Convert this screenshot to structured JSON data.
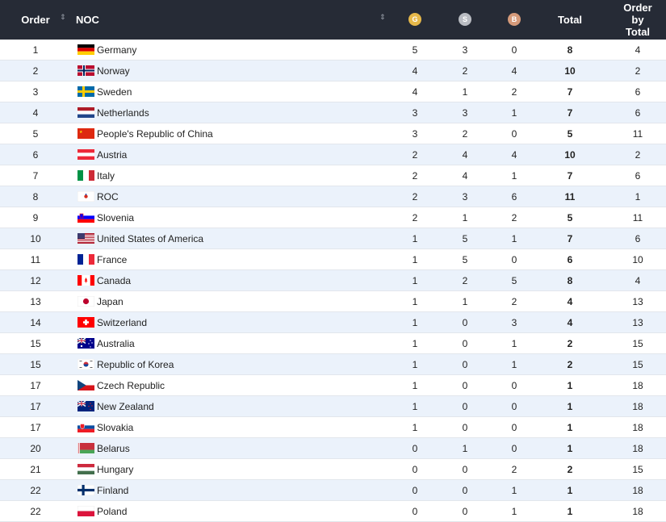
{
  "header": {
    "order": "Order",
    "noc": "NOC",
    "gold": "G",
    "silver": "S",
    "bronze": "B",
    "total": "Total",
    "order_by_total": [
      "Order",
      "by",
      "Total"
    ],
    "sort_icon": "⇕"
  },
  "rows": [
    {
      "order": "1",
      "noc": "Germany",
      "flag": "de",
      "g": "5",
      "s": "3",
      "b": "0",
      "total": "8",
      "obt": "4"
    },
    {
      "order": "2",
      "noc": "Norway",
      "flag": "no",
      "g": "4",
      "s": "2",
      "b": "4",
      "total": "10",
      "obt": "2"
    },
    {
      "order": "3",
      "noc": "Sweden",
      "flag": "se",
      "g": "4",
      "s": "1",
      "b": "2",
      "total": "7",
      "obt": "6"
    },
    {
      "order": "4",
      "noc": "Netherlands",
      "flag": "nl",
      "g": "3",
      "s": "3",
      "b": "1",
      "total": "7",
      "obt": "6"
    },
    {
      "order": "5",
      "noc": "People's Republic of China",
      "flag": "cn",
      "g": "3",
      "s": "2",
      "b": "0",
      "total": "5",
      "obt": "11"
    },
    {
      "order": "6",
      "noc": "Austria",
      "flag": "at",
      "g": "2",
      "s": "4",
      "b": "4",
      "total": "10",
      "obt": "2"
    },
    {
      "order": "7",
      "noc": "Italy",
      "flag": "it",
      "g": "2",
      "s": "4",
      "b": "1",
      "total": "7",
      "obt": "6"
    },
    {
      "order": "8",
      "noc": "ROC",
      "flag": "roc",
      "g": "2",
      "s": "3",
      "b": "6",
      "total": "11",
      "obt": "1"
    },
    {
      "order": "9",
      "noc": "Slovenia",
      "flag": "si",
      "g": "2",
      "s": "1",
      "b": "2",
      "total": "5",
      "obt": "11"
    },
    {
      "order": "10",
      "noc": "United States of America",
      "flag": "us",
      "g": "1",
      "s": "5",
      "b": "1",
      "total": "7",
      "obt": "6"
    },
    {
      "order": "11",
      "noc": "France",
      "flag": "fr",
      "g": "1",
      "s": "5",
      "b": "0",
      "total": "6",
      "obt": "10"
    },
    {
      "order": "12",
      "noc": "Canada",
      "flag": "ca",
      "g": "1",
      "s": "2",
      "b": "5",
      "total": "8",
      "obt": "4"
    },
    {
      "order": "13",
      "noc": "Japan",
      "flag": "jp",
      "g": "1",
      "s": "1",
      "b": "2",
      "total": "4",
      "obt": "13"
    },
    {
      "order": "14",
      "noc": "Switzerland",
      "flag": "ch",
      "g": "1",
      "s": "0",
      "b": "3",
      "total": "4",
      "obt": "13"
    },
    {
      "order": "15",
      "noc": "Australia",
      "flag": "au",
      "g": "1",
      "s": "0",
      "b": "1",
      "total": "2",
      "obt": "15"
    },
    {
      "order": "15",
      "noc": "Republic of Korea",
      "flag": "kr",
      "g": "1",
      "s": "0",
      "b": "1",
      "total": "2",
      "obt": "15"
    },
    {
      "order": "17",
      "noc": "Czech Republic",
      "flag": "cz",
      "g": "1",
      "s": "0",
      "b": "0",
      "total": "1",
      "obt": "18"
    },
    {
      "order": "17",
      "noc": "New Zealand",
      "flag": "nz",
      "g": "1",
      "s": "0",
      "b": "0",
      "total": "1",
      "obt": "18"
    },
    {
      "order": "17",
      "noc": "Slovakia",
      "flag": "sk",
      "g": "1",
      "s": "0",
      "b": "0",
      "total": "1",
      "obt": "18"
    },
    {
      "order": "20",
      "noc": "Belarus",
      "flag": "by",
      "g": "0",
      "s": "1",
      "b": "0",
      "total": "1",
      "obt": "18"
    },
    {
      "order": "21",
      "noc": "Hungary",
      "flag": "hu",
      "g": "0",
      "s": "0",
      "b": "2",
      "total": "2",
      "obt": "15"
    },
    {
      "order": "22",
      "noc": "Finland",
      "flag": "fi",
      "g": "0",
      "s": "0",
      "b": "1",
      "total": "1",
      "obt": "18"
    },
    {
      "order": "22",
      "noc": "Poland",
      "flag": "pl",
      "g": "0",
      "s": "0",
      "b": "1",
      "total": "1",
      "obt": "18"
    }
  ],
  "colors": {
    "header_bg": "#262b36",
    "row_alt_bg": "#ebf2fb",
    "gold": "#e6b84a",
    "silver": "#b9bcc2",
    "bronze": "#d59a7a"
  }
}
